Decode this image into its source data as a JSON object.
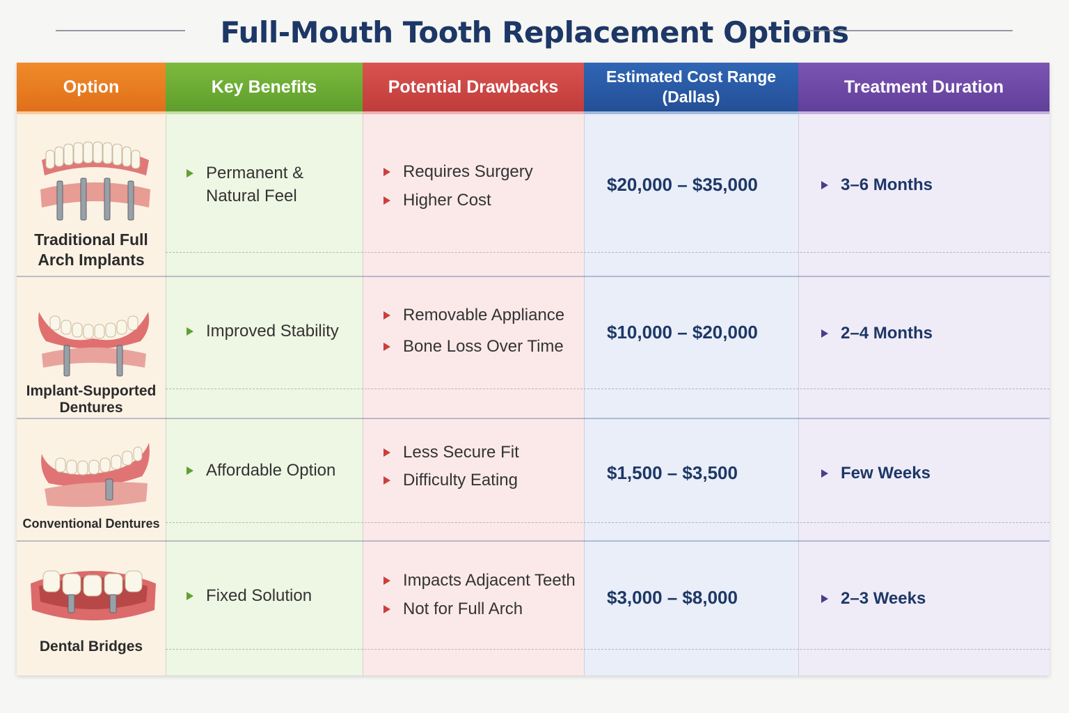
{
  "title": "Full-Mouth Tooth Replacement Options",
  "headers": {
    "option": "Option",
    "benefits": "Key Benefits",
    "drawbacks": "Potential Drawbacks",
    "cost_line1": "Estimated Cost Range",
    "cost_line2": "(Dallas)",
    "duration": "Treatment Duration"
  },
  "colors": {
    "option": "#e87a22",
    "benefits": "#6aac34",
    "drawbacks": "#cc4644",
    "cost": "#2a5aa6",
    "duration": "#6e4aa6",
    "title": "#1d3766"
  },
  "rows": [
    {
      "name_line1": "Traditional Full",
      "name_line2": "Arch Implants",
      "icon": "full-arch-implant-icon",
      "benefits": [
        "Permanent &",
        "Natural Feel"
      ],
      "drawbacks": [
        "Requires Surgery",
        "Higher Cost"
      ],
      "cost": "$20,000 – $35,000",
      "duration": "3–6 Months"
    },
    {
      "name_line1": "Implant-Supported",
      "name_line2": "Dentures",
      "icon": "implant-denture-icon",
      "benefits": [
        "Improved Stability"
      ],
      "drawbacks": [
        "Removable Appliance",
        "Bone Loss Over Time"
      ],
      "cost": "$10,000 – $20,000",
      "duration": "2–4 Months"
    },
    {
      "name_line1": "Conventional Dentures",
      "name_line2": "",
      "icon": "conventional-denture-icon",
      "benefits": [
        "Affordable Option"
      ],
      "drawbacks": [
        "Less Secure Fit",
        "Difficulty Eating"
      ],
      "cost": "$1,500 – $3,500",
      "duration": "Few Weeks"
    },
    {
      "name_line1": "Dental Bridges",
      "name_line2": "",
      "icon": "dental-bridge-icon",
      "benefits": [
        "Fixed Solution"
      ],
      "drawbacks": [
        "Impacts Adjacent Teeth",
        "Not for Full Arch"
      ],
      "cost": "$3,000 – $8,000",
      "duration": "2–3 Weeks"
    }
  ]
}
